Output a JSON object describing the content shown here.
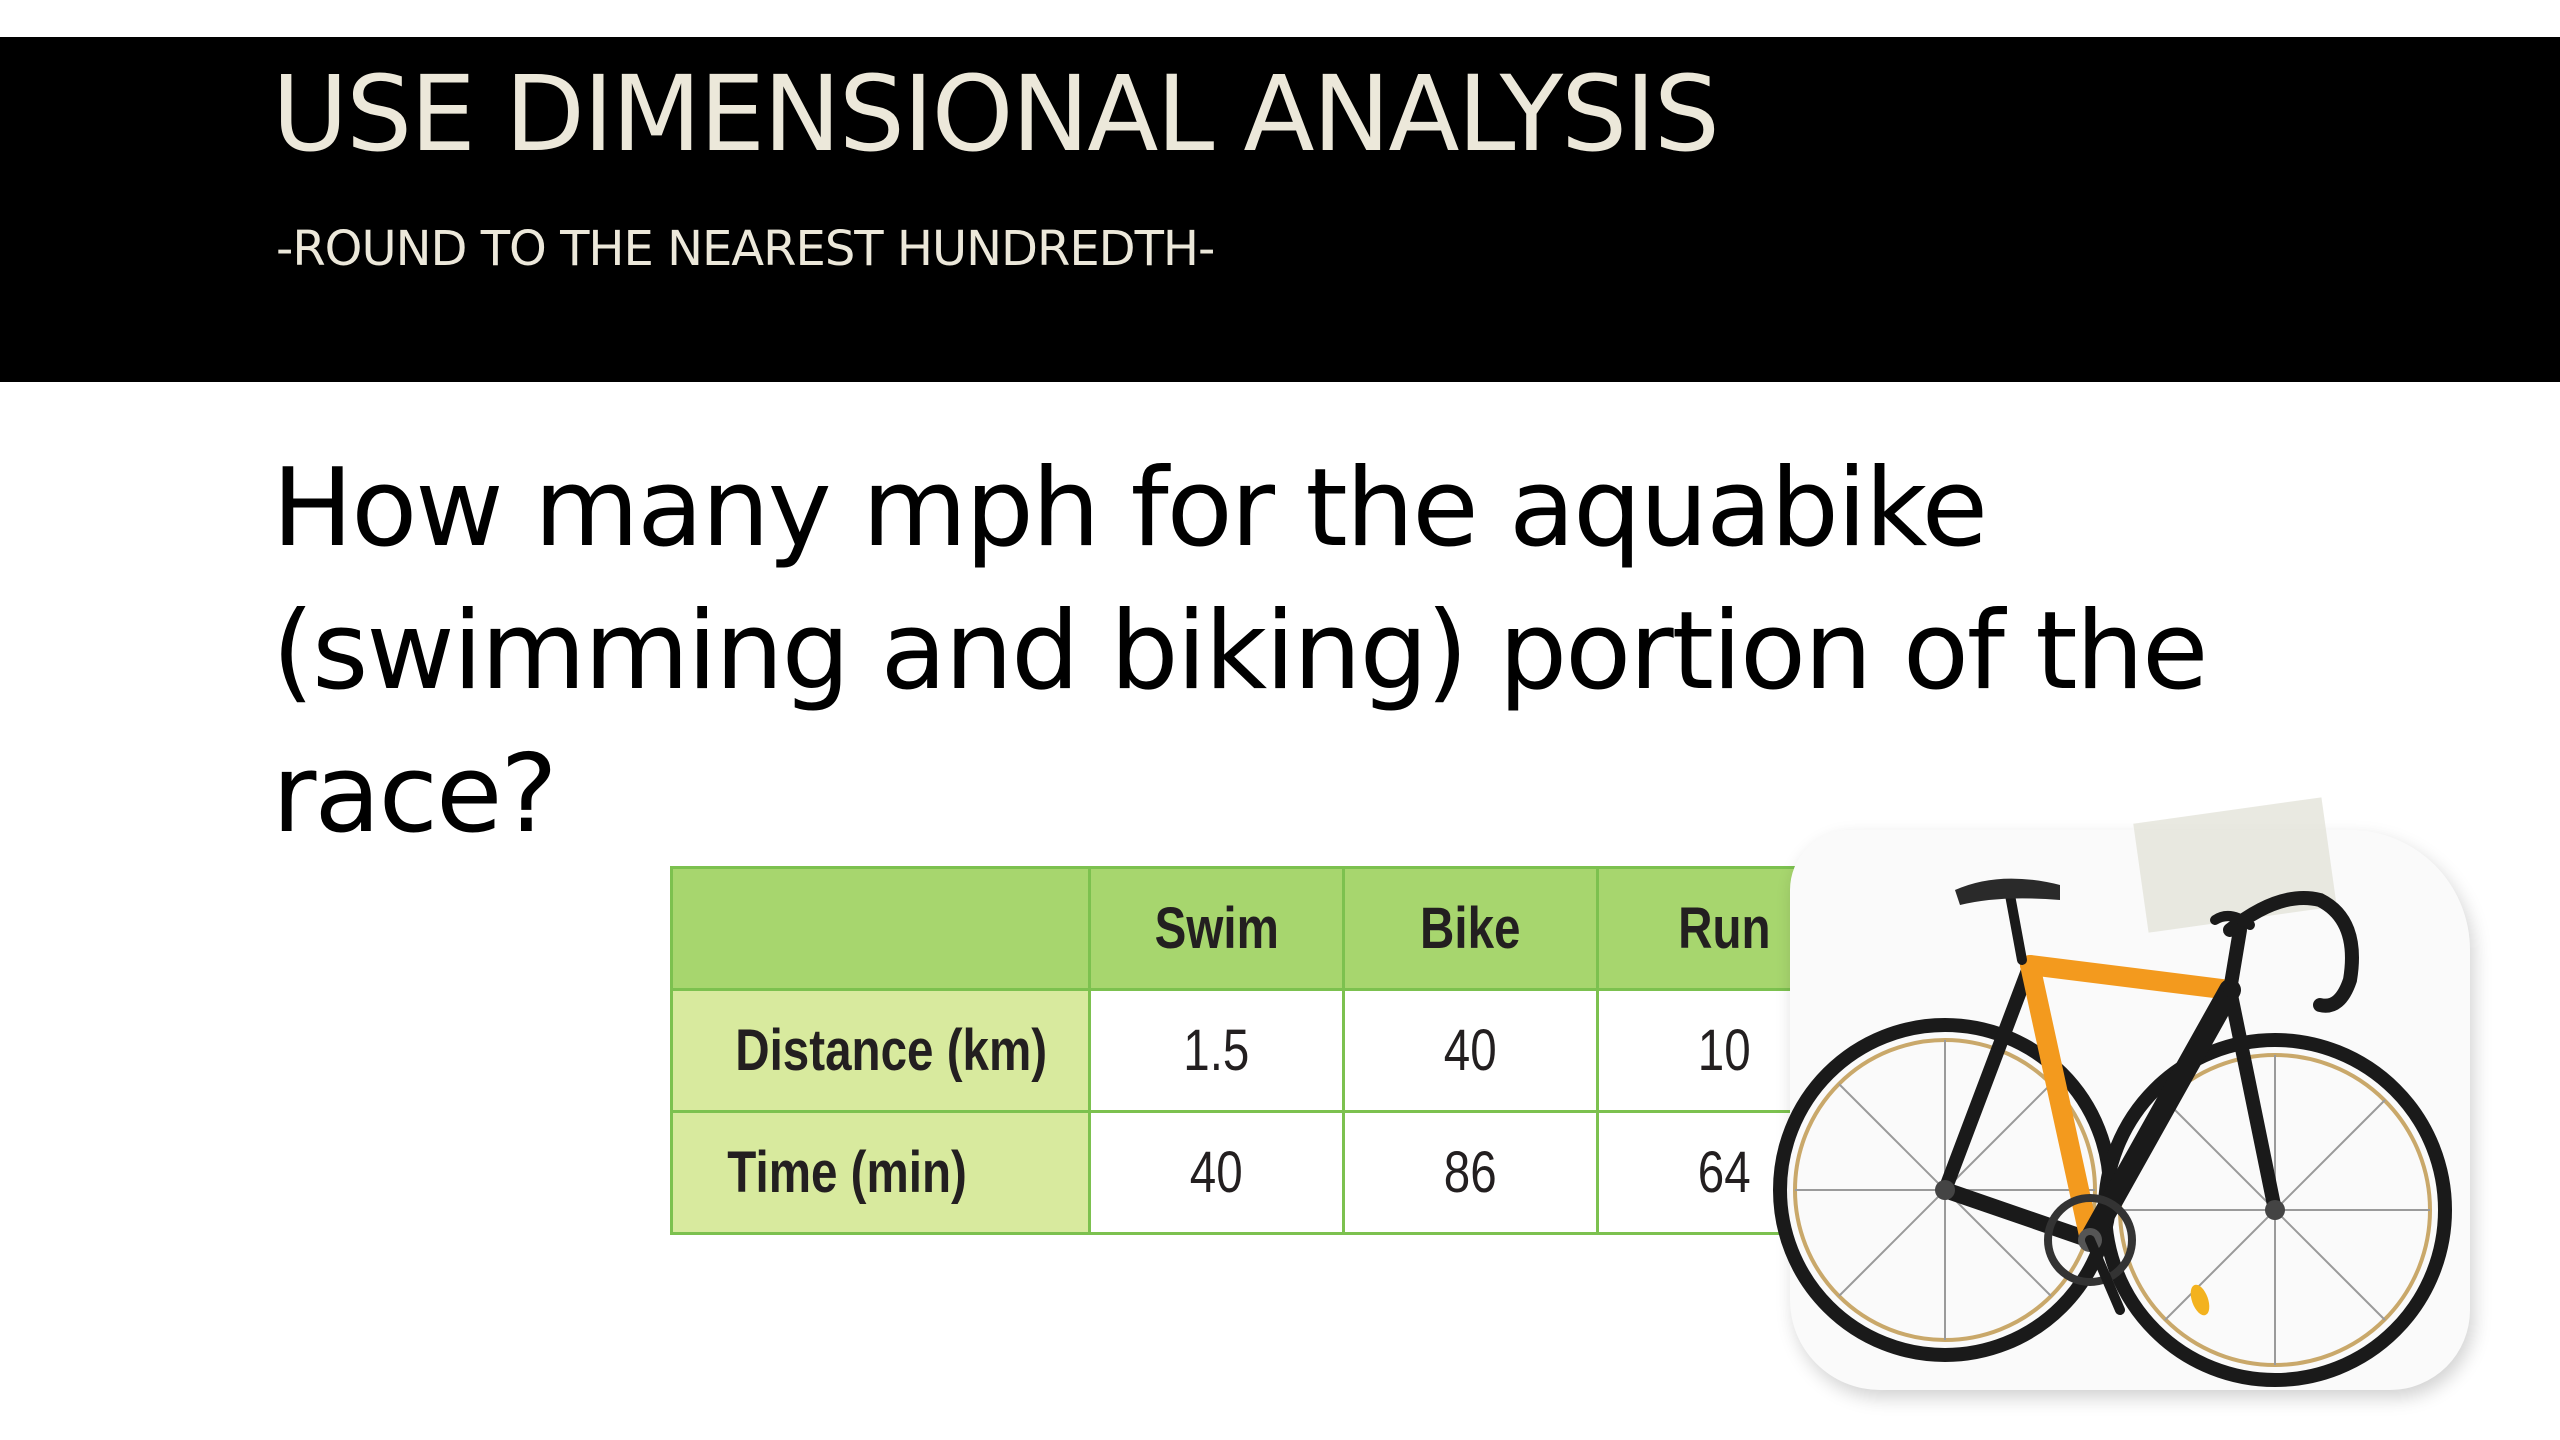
{
  "slide": {
    "title": "USE DIMENSIONAL ANALYSIS",
    "subtitle": "-ROUND TO THE NEAREST HUNDREDTH-",
    "question": "How many mph for the aquabike (swimming and biking) portion of the race?"
  },
  "table": {
    "columns": [
      "Swim",
      "Bike",
      "Run"
    ],
    "rows": [
      {
        "label": "Distance (km)",
        "values": [
          "1.5",
          "40",
          "10"
        ]
      },
      {
        "label": "Time (min)",
        "values": [
          "40",
          "86",
          "64"
        ]
      }
    ]
  },
  "colors": {
    "title_bar": "#000000",
    "title_text": "#ece8da",
    "table_border": "#7cc14f",
    "table_header": "#a7d66e",
    "table_row_header": "#d8ea9e",
    "bike_frame": "#f39a1e"
  },
  "illustration": {
    "icon": "road-bike-icon"
  }
}
